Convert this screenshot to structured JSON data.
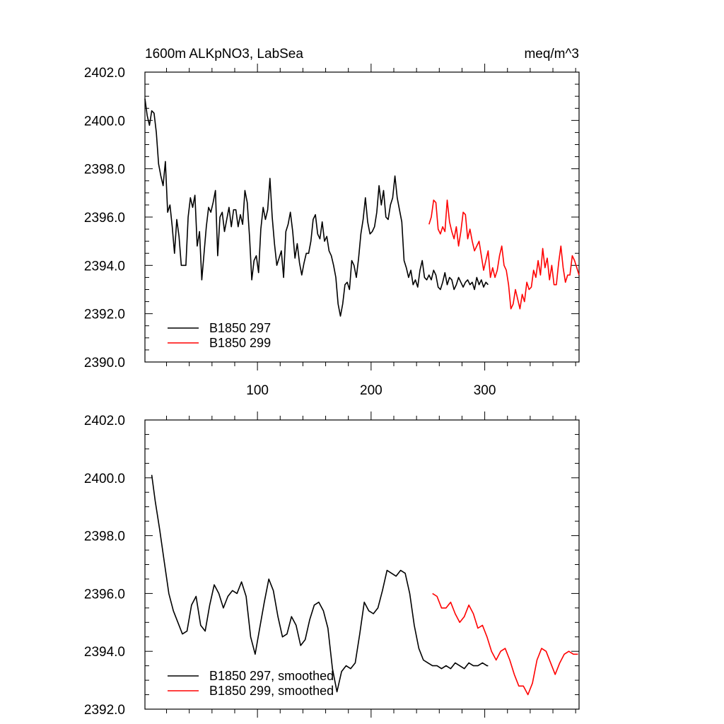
{
  "chart_data": [
    {
      "type": "line",
      "title_left": "1600m ALKpNO3, LabSea",
      "title_right": "meq/m^3",
      "xlim": [
        1,
        383
      ],
      "ylim": [
        2390.0,
        2402.0
      ],
      "x_tick_labels": [
        "100",
        "200",
        "300"
      ],
      "x_ticks": [
        100,
        200,
        300
      ],
      "y_tick_labels": [
        "2390.0",
        "2392.0",
        "2394.0",
        "2396.0",
        "2398.0",
        "2400.0",
        "2402.0"
      ],
      "y_ticks": [
        2390,
        2392,
        2394,
        2396,
        2398,
        2400,
        2402
      ],
      "legend_position": "bottom-left",
      "series": [
        {
          "name": "B1850 297",
          "color": "#000000",
          "x": [
            1,
            3,
            5,
            7,
            9,
            11,
            13,
            15,
            17,
            19,
            21,
            23,
            25,
            27,
            29,
            31,
            33,
            35,
            37,
            39,
            41,
            43,
            45,
            47,
            49,
            51,
            53,
            55,
            57,
            59,
            61,
            63,
            65,
            67,
            69,
            71,
            73,
            75,
            77,
            79,
            81,
            83,
            85,
            87,
            89,
            91,
            93,
            95,
            97,
            99,
            101,
            103,
            105,
            107,
            109,
            111,
            113,
            115,
            117,
            119,
            121,
            123,
            125,
            127,
            129,
            131,
            133,
            135,
            137,
            139,
            141,
            143,
            145,
            147,
            149,
            151,
            153,
            155,
            157,
            159,
            161,
            163,
            165,
            167,
            169,
            171,
            173,
            175,
            177,
            179,
            181,
            183,
            185,
            187,
            189,
            191,
            193,
            195,
            197,
            199,
            201,
            203,
            205,
            207,
            209,
            211,
            213,
            215,
            217,
            219,
            221,
            223,
            225,
            227,
            229,
            231,
            233,
            235,
            237,
            239,
            241,
            243,
            245,
            247,
            249,
            251,
            253,
            255,
            257,
            259,
            261,
            263,
            265,
            267,
            269,
            271,
            273,
            275,
            277,
            279,
            281,
            283,
            285,
            287,
            289,
            291,
            293,
            295,
            297,
            299,
            301,
            303
          ],
          "values": [
            2400.9,
            2400.2,
            2399.8,
            2400.4,
            2400.3,
            2399.5,
            2398.2,
            2397.7,
            2397.3,
            2398.3,
            2396.2,
            2396.5,
            2395.6,
            2394.5,
            2395.9,
            2395.2,
            2394.0,
            2394.0,
            2394.0,
            2396.0,
            2396.8,
            2396.4,
            2396.9,
            2394.8,
            2395.4,
            2393.4,
            2394.5,
            2395.6,
            2396.4,
            2396.2,
            2396.6,
            2397.1,
            2394.4,
            2396.0,
            2396.2,
            2395.4,
            2395.9,
            2396.4,
            2395.6,
            2396.3,
            2396.3,
            2395.6,
            2396.1,
            2395.7,
            2397.1,
            2396.6,
            2395.2,
            2393.4,
            2394.2,
            2394.4,
            2393.7,
            2395.5,
            2396.4,
            2395.9,
            2396.3,
            2397.6,
            2396.0,
            2394.9,
            2394.0,
            2394.3,
            2394.6,
            2393.5,
            2395.4,
            2395.7,
            2396.2,
            2395.4,
            2394.3,
            2394.9,
            2394.1,
            2393.6,
            2394.1,
            2394.5,
            2394.5,
            2395.0,
            2395.9,
            2396.1,
            2395.3,
            2395.1,
            2395.8,
            2395.0,
            2395.2,
            2394.6,
            2394.4,
            2394.0,
            2393.5,
            2392.4,
            2391.9,
            2392.4,
            2393.2,
            2393.3,
            2393.0,
            2394.2,
            2394.0,
            2393.5,
            2394.3,
            2395.3,
            2395.9,
            2396.8,
            2395.8,
            2395.3,
            2395.4,
            2395.6,
            2396.2,
            2397.3,
            2396.5,
            2397.1,
            2396.0,
            2395.9,
            2396.5,
            2396.8,
            2397.7,
            2396.8,
            2396.3,
            2395.8,
            2394.2,
            2393.9,
            2393.5,
            2393.8,
            2393.2,
            2393.4,
            2393.1,
            2393.8,
            2394.2,
            2393.5,
            2393.4,
            2393.6,
            2393.4,
            2393.8,
            2393.6,
            2393.1,
            2393.0,
            2393.3,
            2393.7,
            2393.2,
            2393.5,
            2393.4,
            2393.0,
            2393.2,
            2393.5,
            2393.3,
            2393.1,
            2393.3,
            2393.4,
            2393.2,
            2393.3,
            2393.0,
            2393.5,
            2393.2,
            2393.4,
            2393.1,
            2393.3,
            2393.2
          ]
        },
        {
          "name": "B1850 299",
          "color": "#ff0000",
          "x": [
            251,
            253,
            255,
            257,
            259,
            261,
            263,
            265,
            267,
            269,
            271,
            273,
            275,
            277,
            279,
            281,
            283,
            285,
            287,
            289,
            291,
            293,
            295,
            297,
            299,
            301,
            303,
            305,
            307,
            309,
            311,
            313,
            315,
            317,
            319,
            321,
            323,
            325,
            327,
            329,
            331,
            333,
            335,
            337,
            339,
            341,
            343,
            345,
            347,
            349,
            351,
            353,
            355,
            357,
            359,
            361,
            363,
            365,
            367,
            369,
            371,
            373,
            375,
            377,
            379,
            381,
            383
          ],
          "values": [
            2395.7,
            2396.0,
            2396.7,
            2396.6,
            2395.5,
            2395.3,
            2395.6,
            2395.4,
            2396.7,
            2395.8,
            2395.4,
            2395.1,
            2395.6,
            2394.8,
            2395.4,
            2396.2,
            2396.1,
            2395.1,
            2395.5,
            2395.0,
            2394.6,
            2394.8,
            2395.0,
            2394.4,
            2393.8,
            2394.2,
            2394.6,
            2393.5,
            2393.9,
            2393.5,
            2393.8,
            2394.4,
            2394.8,
            2394.0,
            2393.8,
            2393.2,
            2392.2,
            2392.4,
            2393.0,
            2392.6,
            2392.2,
            2392.8,
            2392.5,
            2393.3,
            2393.0,
            2393.1,
            2393.8,
            2393.5,
            2394.2,
            2393.6,
            2394.7,
            2393.9,
            2394.3,
            2393.4,
            2394.0,
            2393.2,
            2393.2,
            2394.1,
            2394.8,
            2393.9,
            2393.3,
            2393.6,
            2393.6,
            2394.4,
            2394.2,
            2393.9,
            2393.6
          ]
        }
      ]
    },
    {
      "type": "line",
      "xlim": [
        1,
        383
      ],
      "ylim": [
        2392.0,
        2402.0
      ],
      "x_ticks": [
        100,
        200,
        300
      ],
      "y_tick_labels": [
        "2392.0",
        "2394.0",
        "2396.0",
        "2398.0",
        "2400.0",
        "2402.0"
      ],
      "y_ticks": [
        2392,
        2394,
        2396,
        2398,
        2400,
        2402
      ],
      "legend_position": "bottom-left",
      "series": [
        {
          "name": "B1850 297, smoothed",
          "color": "#000000",
          "x": [
            7,
            10,
            14,
            18,
            22,
            26,
            30,
            34,
            38,
            42,
            46,
            50,
            54,
            58,
            62,
            66,
            70,
            74,
            78,
            82,
            86,
            90,
            94,
            98,
            102,
            106,
            110,
            114,
            118,
            122,
            126,
            130,
            134,
            138,
            142,
            146,
            150,
            154,
            158,
            162,
            166,
            170,
            174,
            178,
            182,
            186,
            190,
            194,
            198,
            202,
            206,
            210,
            214,
            218,
            222,
            226,
            230,
            234,
            238,
            242,
            246,
            250,
            254,
            258,
            262,
            266,
            270,
            274,
            278,
            282,
            286,
            290,
            294,
            298,
            302,
            303
          ],
          "values": [
            2400.1,
            2399.2,
            2398.2,
            2397.1,
            2396.0,
            2395.4,
            2395.0,
            2394.6,
            2394.7,
            2395.6,
            2395.9,
            2394.9,
            2394.7,
            2395.6,
            2396.3,
            2396.0,
            2395.5,
            2395.9,
            2396.1,
            2396.0,
            2396.4,
            2395.9,
            2394.5,
            2393.9,
            2394.8,
            2395.7,
            2396.5,
            2396.1,
            2395.2,
            2394.5,
            2394.6,
            2395.2,
            2394.9,
            2394.2,
            2394.4,
            2395.1,
            2395.6,
            2395.7,
            2395.4,
            2394.8,
            2393.4,
            2392.6,
            2393.3,
            2393.5,
            2393.4,
            2393.6,
            2394.6,
            2395.7,
            2395.4,
            2395.3,
            2395.5,
            2396.1,
            2396.8,
            2396.7,
            2396.6,
            2396.8,
            2396.7,
            2396.0,
            2394.9,
            2394.1,
            2393.7,
            2393.6,
            2393.5,
            2393.5,
            2393.4,
            2393.5,
            2393.4,
            2393.6,
            2393.5,
            2393.4,
            2393.6,
            2393.5,
            2393.5,
            2393.6,
            2393.5,
            2393.5
          ]
        },
        {
          "name": "B1850 299, smoothed",
          "color": "#ff0000",
          "x": [
            254,
            258,
            262,
            266,
            270,
            274,
            278,
            282,
            286,
            290,
            294,
            298,
            302,
            306,
            310,
            314,
            318,
            322,
            326,
            330,
            334,
            338,
            342,
            346,
            350,
            354,
            358,
            362,
            366,
            370,
            374,
            378,
            382
          ],
          "values": [
            2396.0,
            2395.9,
            2395.5,
            2395.5,
            2395.7,
            2395.3,
            2395.0,
            2395.2,
            2395.6,
            2395.3,
            2394.8,
            2394.9,
            2394.5,
            2394.0,
            2393.7,
            2394.0,
            2394.1,
            2393.7,
            2393.2,
            2392.8,
            2392.8,
            2392.5,
            2392.9,
            2393.7,
            2394.1,
            2394.0,
            2393.6,
            2393.2,
            2393.6,
            2393.9,
            2394.0,
            2393.9,
            2393.9
          ]
        }
      ]
    }
  ]
}
